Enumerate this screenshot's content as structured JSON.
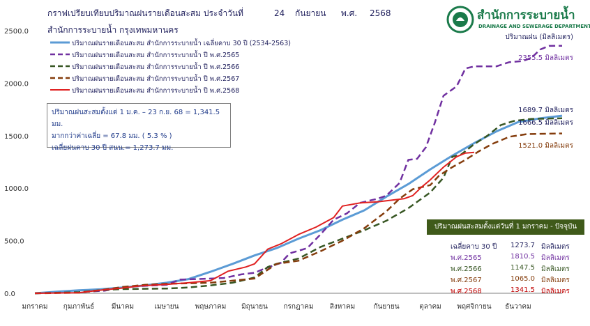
{
  "title_line1": "กราฟเปรียบเทียบปริมาณฝนรายเดือนสะสม ประจำวันที่",
  "title_day": "24",
  "title_month": "กันยายน",
  "title_era": "พ.ศ.",
  "title_year": "2568",
  "title_line2": "สำนักการระบายน้ำ กรุงเทพมหานคร",
  "logo": {
    "name_th": "สำนักการระบายน้ำ",
    "name_en": "DRAINAGE AND SEWERAGE DEPARTMENT",
    "color": "#1a7a4a"
  },
  "unit_label": "ปริมาณฝน (มิลลิเมตร)",
  "info_box": {
    "line1": "ปริมาณฝนสะสมตั้งแต่ 1 ม.ค. – 23 ก.ย. 68 = 1,341.5 มม.",
    "line2": "มากกว่าค่าเฉลี่ย = 67.8 มม. ( 5.3 % )",
    "line3": "เฉลี่ยฝนคาบ 30 ปี สนน.= 1,273.7 มม."
  },
  "summary": {
    "header": "ปริมาณฝนสะสมตั้งแต่วันที่ 1 มกราคม - ปัจจุบัน",
    "rows": [
      {
        "label": "เฉลี่ยคาบ 30 ปี",
        "value": "1273.7",
        "unit": "มิลลิเมตร",
        "color": "#1f1f5c"
      },
      {
        "label": "พ.ศ.2565",
        "value": "1810.5",
        "unit": "มิลลิเมตร",
        "color": "#7030a0"
      },
      {
        "label": "พ.ศ.2566",
        "value": "1147.5",
        "unit": "มิลลิเมตร",
        "color": "#375623"
      },
      {
        "label": "พ.ศ.2567",
        "value": "1065.0",
        "unit": "มิลลิเมตร",
        "color": "#843c0c"
      },
      {
        "label": "พ.ศ.2568",
        "value": "1341.5",
        "unit": "มิลลิเมตร",
        "color": "#c00000"
      }
    ]
  },
  "chart_data": {
    "type": "line",
    "ylim": [
      0,
      2500
    ],
    "yticks": [
      "0.0",
      "500.0",
      "1000.0",
      "1500.0",
      "2000.0",
      "2500.0"
    ],
    "categories": [
      "มกราคม",
      "กุมภาพันธ์",
      "มีนาคม",
      "เมษายน",
      "พฤษภาคม",
      "มิถุนายน",
      "กรกฎาคม",
      "สิงหาคม",
      "กันยายน",
      "ตุลาคม",
      "พฤศจิกายน",
      "ธันวาคม"
    ],
    "grid": false,
    "legend_position": "top-left",
    "series": [
      {
        "name": "ปริมาณฝนรายเดือนสะสม สำนักการระบายน้ำ เฉลี่ยคาบ 30 ปี (2534-2563)",
        "color": "#5b9bd5",
        "dash": "none",
        "width": 3,
        "end_label": "1689.7 มิลลิเมตร",
        "end_label_color": "#1f1f5c",
        "points": [
          [
            0,
            0
          ],
          [
            0.5,
            15
          ],
          [
            1,
            28
          ],
          [
            1.5,
            38
          ],
          [
            2,
            55
          ],
          [
            2.5,
            75
          ],
          [
            3,
            100
          ],
          [
            3.5,
            135
          ],
          [
            4,
            205
          ],
          [
            4.5,
            280
          ],
          [
            5,
            360
          ],
          [
            5.5,
            430
          ],
          [
            6,
            520
          ],
          [
            6.5,
            600
          ],
          [
            7,
            700
          ],
          [
            7.5,
            790
          ],
          [
            8,
            920
          ],
          [
            8.5,
            1040
          ],
          [
            9,
            1180
          ],
          [
            9.5,
            1310
          ],
          [
            10,
            1430
          ],
          [
            10.5,
            1540
          ],
          [
            11,
            1630
          ],
          [
            11.5,
            1665
          ],
          [
            12,
            1690
          ]
        ]
      },
      {
        "name": "ปริมาณฝนรายเดือนสะสม สำนักการระบายน้ำ ปี พ.ศ.2565",
        "color": "#7030a0",
        "dash": "9,5",
        "width": 2.5,
        "end_label": "2355.5 มิลลิเมตร",
        "end_label_color": "#7030a0",
        "points": [
          [
            0,
            0
          ],
          [
            1,
            10
          ],
          [
            1.6,
            25
          ],
          [
            2,
            60
          ],
          [
            2.5,
            70
          ],
          [
            3,
            80
          ],
          [
            3.3,
            130
          ],
          [
            4,
            140
          ],
          [
            4.3,
            145
          ],
          [
            4.7,
            180
          ],
          [
            5,
            195
          ],
          [
            5.2,
            230
          ],
          [
            5.6,
            290
          ],
          [
            5.8,
            380
          ],
          [
            6.2,
            430
          ],
          [
            6.5,
            560
          ],
          [
            6.8,
            700
          ],
          [
            7.1,
            760
          ],
          [
            7.4,
            860
          ],
          [
            7.8,
            900
          ],
          [
            8,
            930
          ],
          [
            8.3,
            1050
          ],
          [
            8.5,
            1270
          ],
          [
            8.7,
            1280
          ],
          [
            8.9,
            1390
          ],
          [
            9.1,
            1620
          ],
          [
            9.3,
            1880
          ],
          [
            9.6,
            1970
          ],
          [
            9.8,
            2140
          ],
          [
            10,
            2160
          ],
          [
            10.5,
            2160
          ],
          [
            10.8,
            2200
          ],
          [
            11.1,
            2210
          ],
          [
            11.3,
            2240
          ],
          [
            11.5,
            2320
          ],
          [
            11.7,
            2355
          ],
          [
            12,
            2356
          ]
        ]
      },
      {
        "name": "ปริมาณฝนรายเดือนสะสม สำนักการระบายน้ำ ปี พ.ศ.2566",
        "color": "#375623",
        "dash": "9,5",
        "width": 2.5,
        "end_label": "1666.5 มิลลิเมตร",
        "end_label_color": "#1f1f5c",
        "points": [
          [
            0,
            0
          ],
          [
            1,
            10
          ],
          [
            1.5,
            30
          ],
          [
            2,
            40
          ],
          [
            3,
            45
          ],
          [
            3.5,
            55
          ],
          [
            4,
            75
          ],
          [
            4.5,
            100
          ],
          [
            5,
            150
          ],
          [
            5.3,
            250
          ],
          [
            5.5,
            280
          ],
          [
            6,
            330
          ],
          [
            6.5,
            440
          ],
          [
            7,
            520
          ],
          [
            7.5,
            600
          ],
          [
            8,
            690
          ],
          [
            8.5,
            810
          ],
          [
            8.8,
            900
          ],
          [
            9,
            960
          ],
          [
            9.3,
            1100
          ],
          [
            9.5,
            1300
          ],
          [
            9.7,
            1320
          ],
          [
            10,
            1420
          ],
          [
            10.3,
            1500
          ],
          [
            10.6,
            1600
          ],
          [
            10.9,
            1640
          ],
          [
            11.3,
            1660
          ],
          [
            12,
            1666
          ]
        ]
      },
      {
        "name": "ปริมาณฝนรายเดือนสะสม สำนักการระบายน้ำ ปี พ.ศ.2567",
        "color": "#843c0c",
        "dash": "9,5",
        "width": 2.5,
        "end_label": "1521.0 มิลลิเมตร",
        "end_label_color": "#843c0c",
        "points": [
          [
            0,
            0
          ],
          [
            1,
            5
          ],
          [
            1.5,
            30
          ],
          [
            2,
            60
          ],
          [
            2.5,
            80
          ],
          [
            3,
            90
          ],
          [
            4,
            100
          ],
          [
            4.5,
            120
          ],
          [
            5,
            140
          ],
          [
            5.5,
            280
          ],
          [
            6,
            310
          ],
          [
            6.5,
            400
          ],
          [
            7,
            500
          ],
          [
            7.5,
            620
          ],
          [
            8,
            780
          ],
          [
            8.3,
            900
          ],
          [
            8.6,
            990
          ],
          [
            9,
            1030
          ],
          [
            9.2,
            1120
          ],
          [
            9.5,
            1200
          ],
          [
            9.8,
            1270
          ],
          [
            10.1,
            1350
          ],
          [
            10.4,
            1420
          ],
          [
            10.8,
            1490
          ],
          [
            11.2,
            1515
          ],
          [
            12,
            1521
          ]
        ]
      },
      {
        "name": "ปริมาณฝนรายเดือนสะสม สำนักการระบายน้ำ ปี พ.ศ.2568",
        "color": "#e02020",
        "dash": "none",
        "width": 2,
        "end_label": "",
        "end_label_color": "#c00000",
        "points": [
          [
            0,
            0
          ],
          [
            1,
            5
          ],
          [
            1.5,
            30
          ],
          [
            2,
            50
          ],
          [
            2.4,
            70
          ],
          [
            3,
            85
          ],
          [
            3.5,
            100
          ],
          [
            4,
            120
          ],
          [
            4.4,
            210
          ],
          [
            4.8,
            250
          ],
          [
            5,
            280
          ],
          [
            5.3,
            420
          ],
          [
            5.6,
            470
          ],
          [
            6,
            560
          ],
          [
            6.4,
            630
          ],
          [
            6.8,
            720
          ],
          [
            7,
            830
          ],
          [
            7.4,
            860
          ],
          [
            7.8,
            870
          ],
          [
            8,
            880
          ],
          [
            8.4,
            900
          ],
          [
            8.6,
            930
          ],
          [
            8.8,
            1010
          ],
          [
            9,
            1080
          ],
          [
            9.3,
            1200
          ],
          [
            9.6,
            1300
          ],
          [
            9.8,
            1335
          ],
          [
            10,
            1341
          ]
        ]
      }
    ]
  }
}
